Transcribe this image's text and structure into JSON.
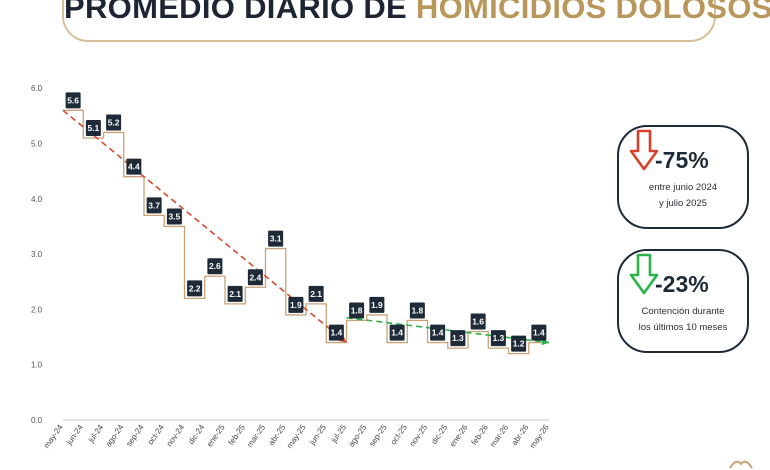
{
  "header": {
    "title_main": "PROMEDIO DIARIO DE ",
    "title_accent": "HOMICIDIOS DOLOSOS"
  },
  "colors": {
    "accent_gold": "#b9975b",
    "box_dark": "#1e2a38",
    "step_line": "#c9a277",
    "trend_red": "#d64b32",
    "trend_green": "#2bb34a",
    "arrow_red": "#d9402b",
    "arrow_green": "#2bb34a"
  },
  "cards": [
    {
      "icon": "arrow-down-red-icon",
      "value": "-75%",
      "line1": "entre junio 2024",
      "line2": "y julio 2025"
    },
    {
      "icon": "arrow-down-green-icon",
      "value": "-23%",
      "line1": "Contención durante",
      "line2": "los últimos 10 meses"
    }
  ],
  "chart_data": {
    "type": "line",
    "step": true,
    "categories": [
      "may-24",
      "jun-24",
      "jul-24",
      "ago-24",
      "sep-24",
      "oct-24",
      "nov-24",
      "dic-24",
      "ene-25",
      "feb-25",
      "mar-25",
      "abr-25",
      "may-25",
      "jun-25",
      "jul-25",
      "ago-25",
      "sep-25",
      "oct-25",
      "nov-25",
      "dic-25",
      "ene-26",
      "feb-26",
      "mar-26",
      "abr-26",
      "may-26"
    ],
    "values": [
      5.6,
      5.1,
      5.2,
      4.4,
      3.7,
      3.5,
      2.2,
      2.6,
      2.1,
      2.4,
      3.1,
      1.9,
      2.1,
      1.4,
      1.8,
      1.9,
      1.4,
      1.8,
      1.4,
      1.3,
      1.6,
      1.3,
      1.2,
      1.4
    ],
    "labels": [
      "5.6",
      "5.1",
      "5.2",
      "4.4",
      "3.7",
      "3.5",
      "2.2",
      "2.6",
      "2.1",
      "2.4",
      "3.1",
      "1.9",
      "2.1",
      "1.4",
      "1.8",
      "1.9",
      "1.4",
      "1.8",
      "1.4",
      "1.3",
      "1.6",
      "1.3",
      "1.2",
      "1.4"
    ],
    "yticks": [
      "0.0",
      "1.0",
      "2.0",
      "3.0",
      "4.0",
      "5.0",
      "6.0"
    ],
    "ylim": [
      0,
      6
    ],
    "grid": false,
    "trendlines": [
      {
        "from": [
          0,
          5.6
        ],
        "to": [
          14,
          1.4
        ],
        "style": "dashed",
        "color": "#d64b32"
      },
      {
        "from": [
          14,
          1.85
        ],
        "to": [
          24,
          1.4
        ],
        "style": "dashed",
        "color": "#2bb34a"
      }
    ]
  }
}
